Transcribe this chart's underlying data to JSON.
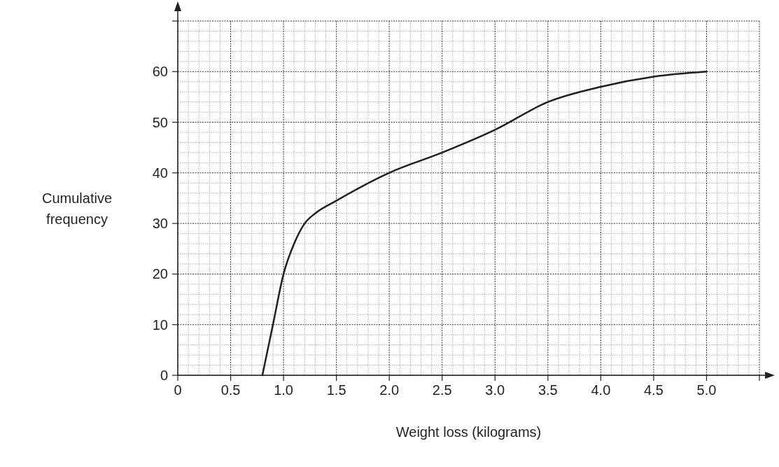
{
  "chart_data": {
    "type": "line",
    "xlabel": "Weight loss (kilograms)",
    "ylabel": "Cumulative frequency",
    "x": [
      0.8,
      0.9,
      1.0,
      1.1,
      1.2,
      1.3,
      1.5,
      2.0,
      2.5,
      3.0,
      3.5,
      4.0,
      4.5,
      5.0
    ],
    "series": [
      {
        "color": "#231f20",
        "values": [
          0,
          10,
          20,
          26,
          30,
          32,
          34.5,
          40,
          44,
          48.5,
          54,
          57,
          59,
          60
        ]
      }
    ],
    "xlim": [
      0,
      5.5
    ],
    "ylim": [
      0,
      70
    ],
    "xticks": [
      0,
      0.5,
      {
        "value": 1,
        "label": "1.0"
      },
      1.5,
      {
        "value": 2,
        "label": "2.0"
      },
      2.5,
      {
        "value": 3,
        "label": "3.0"
      },
      3.5,
      {
        "value": 4,
        "label": "4.0"
      },
      4.5,
      {
        "value": 5,
        "label": "5.0"
      },
      {
        "value": 5.5,
        "label": null
      }
    ],
    "yticks": [
      0,
      10,
      20,
      30,
      40,
      50,
      60,
      {
        "value": 70,
        "label": null
      }
    ],
    "grid": true,
    "marker": "none",
    "line_style": "solid"
  }
}
